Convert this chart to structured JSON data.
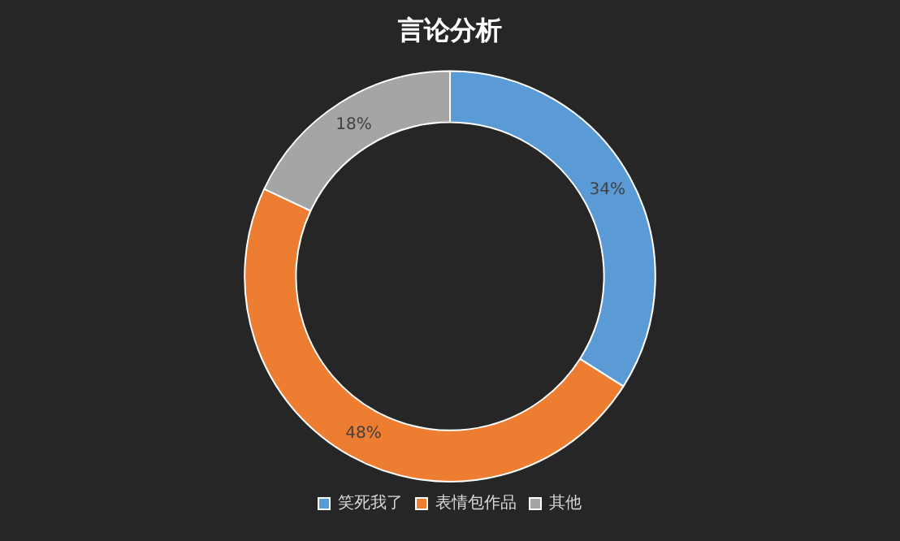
{
  "chart_data": {
    "type": "donut",
    "title": "言论分析",
    "categories": [
      "笑死我了",
      "表情包作品",
      "其他"
    ],
    "values": [
      34,
      48,
      18
    ],
    "colors": [
      "#5b9bd5",
      "#ed7d31",
      "#a5a5a5"
    ],
    "value_labels": [
      "34%",
      "48%",
      "18%"
    ],
    "legend": "bottom"
  }
}
